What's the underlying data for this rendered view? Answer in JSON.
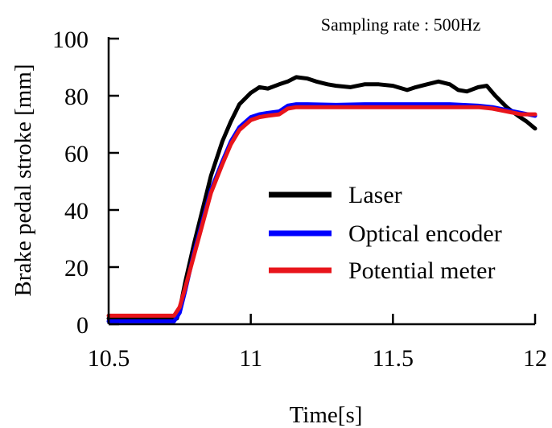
{
  "chart_data": {
    "type": "line",
    "annotation": "Sampling rate : 500Hz",
    "xlabel": "Time[s]",
    "ylabel": "Brake pedal stroke [mm]",
    "xlim": [
      10.5,
      12
    ],
    "ylim": [
      0,
      100
    ],
    "x_ticks": [
      "10.5",
      "11",
      "11.5",
      "12"
    ],
    "y_ticks": [
      "0",
      "20",
      "40",
      "60",
      "80",
      "100"
    ],
    "legend_position": "center-right",
    "grid": false,
    "series": [
      {
        "name": "Laser",
        "color": "#000000",
        "points": [
          [
            10.5,
            2
          ],
          [
            10.7,
            2
          ],
          [
            10.74,
            2
          ],
          [
            10.75,
            5
          ],
          [
            10.77,
            15
          ],
          [
            10.8,
            28
          ],
          [
            10.83,
            40
          ],
          [
            10.86,
            52
          ],
          [
            10.9,
            64
          ],
          [
            10.93,
            71
          ],
          [
            10.96,
            77
          ],
          [
            11.0,
            81
          ],
          [
            11.03,
            83
          ],
          [
            11.06,
            82.5
          ],
          [
            11.1,
            84
          ],
          [
            11.13,
            85
          ],
          [
            11.16,
            86.5
          ],
          [
            11.2,
            86
          ],
          [
            11.23,
            85
          ],
          [
            11.27,
            84
          ],
          [
            11.3,
            83.5
          ],
          [
            11.35,
            83
          ],
          [
            11.4,
            84
          ],
          [
            11.45,
            84
          ],
          [
            11.5,
            83.5
          ],
          [
            11.55,
            82
          ],
          [
            11.58,
            83
          ],
          [
            11.62,
            84
          ],
          [
            11.66,
            85
          ],
          [
            11.7,
            84
          ],
          [
            11.73,
            82
          ],
          [
            11.76,
            81.5
          ],
          [
            11.8,
            83
          ],
          [
            11.83,
            83.5
          ],
          [
            11.86,
            80
          ],
          [
            11.9,
            76
          ],
          [
            11.94,
            73
          ],
          [
            11.97,
            71
          ],
          [
            12.0,
            68.5
          ]
        ]
      },
      {
        "name": "Optical encoder",
        "color": "#0000ff",
        "points": [
          [
            10.5,
            1
          ],
          [
            10.73,
            1
          ],
          [
            10.75,
            4
          ],
          [
            10.77,
            12
          ],
          [
            10.8,
            25
          ],
          [
            10.83,
            36
          ],
          [
            10.86,
            47
          ],
          [
            10.9,
            57
          ],
          [
            10.93,
            64
          ],
          [
            10.96,
            69
          ],
          [
            11.0,
            72.5
          ],
          [
            11.03,
            73.5
          ],
          [
            11.06,
            74
          ],
          [
            11.1,
            74.5
          ],
          [
            11.13,
            76.5
          ],
          [
            11.16,
            77
          ],
          [
            11.2,
            77
          ],
          [
            11.3,
            76.8
          ],
          [
            11.4,
            77
          ],
          [
            11.5,
            77
          ],
          [
            11.6,
            77
          ],
          [
            11.7,
            77
          ],
          [
            11.8,
            76.5
          ],
          [
            11.85,
            76
          ],
          [
            11.9,
            75
          ],
          [
            11.95,
            74
          ],
          [
            12.0,
            73
          ]
        ]
      },
      {
        "name": "Potential meter",
        "color": "#e8151b",
        "points": [
          [
            10.5,
            3
          ],
          [
            10.73,
            3
          ],
          [
            10.75,
            6
          ],
          [
            10.77,
            13
          ],
          [
            10.8,
            24
          ],
          [
            10.83,
            35
          ],
          [
            10.86,
            46
          ],
          [
            10.9,
            56
          ],
          [
            10.93,
            63
          ],
          [
            10.96,
            68
          ],
          [
            11.0,
            71.5
          ],
          [
            11.03,
            72.5
          ],
          [
            11.06,
            73
          ],
          [
            11.1,
            73.5
          ],
          [
            11.13,
            75.5
          ],
          [
            11.16,
            76
          ],
          [
            11.2,
            76
          ],
          [
            11.3,
            76
          ],
          [
            11.4,
            76
          ],
          [
            11.5,
            76
          ],
          [
            11.6,
            76
          ],
          [
            11.7,
            76
          ],
          [
            11.8,
            76
          ],
          [
            11.85,
            75.5
          ],
          [
            11.9,
            74.5
          ],
          [
            11.95,
            73.5
          ],
          [
            12.0,
            73.5
          ]
        ]
      }
    ]
  }
}
